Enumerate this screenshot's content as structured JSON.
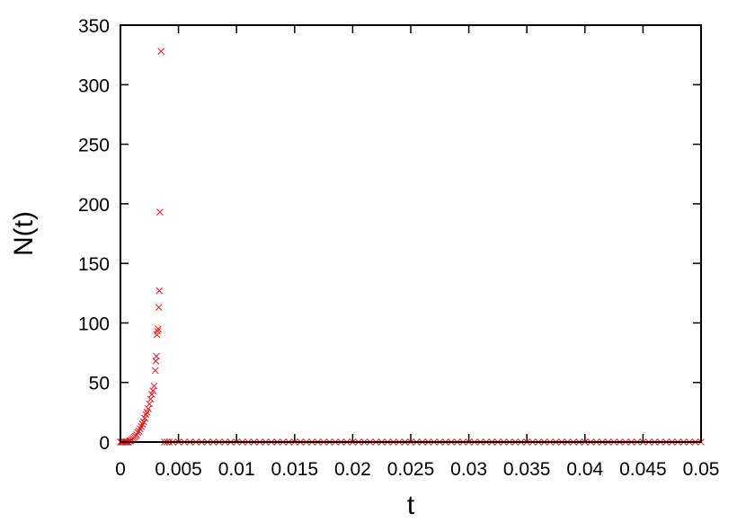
{
  "chart_data": {
    "type": "scatter",
    "title": "",
    "xlabel": "t",
    "ylabel": "N(t)",
    "xlim": [
      0,
      0.05
    ],
    "ylim": [
      0,
      350
    ],
    "x_ticks": [
      0,
      0.005,
      0.01,
      0.015,
      0.02,
      0.025,
      0.03,
      0.035,
      0.04,
      0.045,
      0.05
    ],
    "x_tick_labels": [
      "0",
      "0.005",
      "0.01",
      "0.015",
      "0.02",
      "0.025",
      "0.03",
      "0.035",
      "0.04",
      "0.045",
      "0.05"
    ],
    "y_ticks": [
      0,
      50,
      100,
      150,
      200,
      250,
      300,
      350
    ],
    "y_tick_labels": [
      "0",
      "50",
      "100",
      "150",
      "200",
      "250",
      "300",
      "350"
    ],
    "grid": false,
    "legend": "none",
    "marker": "cross",
    "series": [
      {
        "color": "#e8161b",
        "points": [
          [
            0.0,
            0
          ],
          [
            0.0001,
            0
          ],
          [
            0.0002,
            0
          ],
          [
            0.0003,
            0
          ],
          [
            0.0004,
            0
          ],
          [
            0.0005,
            0
          ],
          [
            0.0006,
            0
          ],
          [
            0.0007,
            0
          ],
          [
            0.0008,
            1
          ],
          [
            0.0009,
            1
          ],
          [
            0.001,
            2
          ],
          [
            0.0011,
            3
          ],
          [
            0.0012,
            4
          ],
          [
            0.0013,
            5
          ],
          [
            0.0014,
            6
          ],
          [
            0.0015,
            8
          ],
          [
            0.0016,
            9
          ],
          [
            0.0017,
            11
          ],
          [
            0.0018,
            13
          ],
          [
            0.0019,
            15
          ],
          [
            0.002,
            17
          ],
          [
            0.0021,
            20
          ],
          [
            0.0022,
            23
          ],
          [
            0.0023,
            25
          ],
          [
            0.0024,
            28
          ],
          [
            0.0025,
            32
          ],
          [
            0.0026,
            36
          ],
          [
            0.0027,
            40
          ],
          [
            0.0028,
            43
          ],
          [
            0.0029,
            47
          ],
          [
            0.003,
            60
          ],
          [
            0.00305,
            68
          ],
          [
            0.0031,
            72
          ],
          [
            0.00315,
            90
          ],
          [
            0.0032,
            93
          ],
          [
            0.00325,
            95
          ],
          [
            0.0033,
            113
          ],
          [
            0.00335,
            127
          ],
          [
            0.0034,
            193
          ],
          [
            0.0035,
            328
          ],
          [
            0.0038,
            0
          ],
          [
            0.004,
            0
          ],
          [
            0.0042,
            0
          ],
          [
            0.0045,
            0
          ],
          [
            0.005,
            0
          ],
          [
            0.0055,
            0
          ],
          [
            0.006,
            0
          ],
          [
            0.0065,
            0
          ],
          [
            0.007,
            0
          ],
          [
            0.0075,
            0
          ],
          [
            0.008,
            0
          ],
          [
            0.0085,
            0
          ],
          [
            0.009,
            0
          ],
          [
            0.0095,
            0
          ],
          [
            0.01,
            0
          ],
          [
            0.0105,
            0
          ],
          [
            0.011,
            0
          ],
          [
            0.0115,
            0
          ],
          [
            0.012,
            0
          ],
          [
            0.0125,
            0
          ],
          [
            0.013,
            0
          ],
          [
            0.0135,
            0
          ],
          [
            0.014,
            0
          ],
          [
            0.0145,
            0
          ],
          [
            0.015,
            0
          ],
          [
            0.0155,
            0
          ],
          [
            0.016,
            0
          ],
          [
            0.0165,
            0
          ],
          [
            0.017,
            0
          ],
          [
            0.0175,
            0
          ],
          [
            0.018,
            0
          ],
          [
            0.0185,
            0
          ],
          [
            0.019,
            0
          ],
          [
            0.0195,
            0
          ],
          [
            0.02,
            0
          ],
          [
            0.0205,
            0
          ],
          [
            0.021,
            0
          ],
          [
            0.0215,
            0
          ],
          [
            0.022,
            0
          ],
          [
            0.0225,
            0
          ],
          [
            0.023,
            0
          ],
          [
            0.0235,
            0
          ],
          [
            0.024,
            0
          ],
          [
            0.0245,
            0
          ],
          [
            0.025,
            0
          ],
          [
            0.0255,
            0
          ],
          [
            0.026,
            0
          ],
          [
            0.0265,
            0
          ],
          [
            0.027,
            0
          ],
          [
            0.0275,
            0
          ],
          [
            0.028,
            0
          ],
          [
            0.0285,
            0
          ],
          [
            0.029,
            0
          ],
          [
            0.0295,
            0
          ],
          [
            0.03,
            0
          ],
          [
            0.0305,
            0
          ],
          [
            0.031,
            0
          ],
          [
            0.0315,
            0
          ],
          [
            0.032,
            0
          ],
          [
            0.0325,
            0
          ],
          [
            0.033,
            0
          ],
          [
            0.0335,
            0
          ],
          [
            0.034,
            0
          ],
          [
            0.0345,
            0
          ],
          [
            0.035,
            0
          ],
          [
            0.0355,
            0
          ],
          [
            0.036,
            0
          ],
          [
            0.0365,
            0
          ],
          [
            0.037,
            0
          ],
          [
            0.0375,
            0
          ],
          [
            0.038,
            0
          ],
          [
            0.0385,
            0
          ],
          [
            0.039,
            0
          ],
          [
            0.0395,
            0
          ],
          [
            0.04,
            0
          ],
          [
            0.0405,
            0
          ],
          [
            0.041,
            0
          ],
          [
            0.0415,
            0
          ],
          [
            0.042,
            0
          ],
          [
            0.0425,
            0
          ],
          [
            0.043,
            0
          ],
          [
            0.0435,
            0
          ],
          [
            0.044,
            0
          ],
          [
            0.0445,
            0
          ],
          [
            0.045,
            0
          ],
          [
            0.0455,
            0
          ],
          [
            0.046,
            0
          ],
          [
            0.0465,
            0
          ],
          [
            0.047,
            0
          ],
          [
            0.0475,
            0
          ],
          [
            0.048,
            0
          ],
          [
            0.0485,
            0
          ],
          [
            0.049,
            0
          ],
          [
            0.0495,
            0
          ],
          [
            0.05,
            0
          ]
        ]
      }
    ]
  }
}
